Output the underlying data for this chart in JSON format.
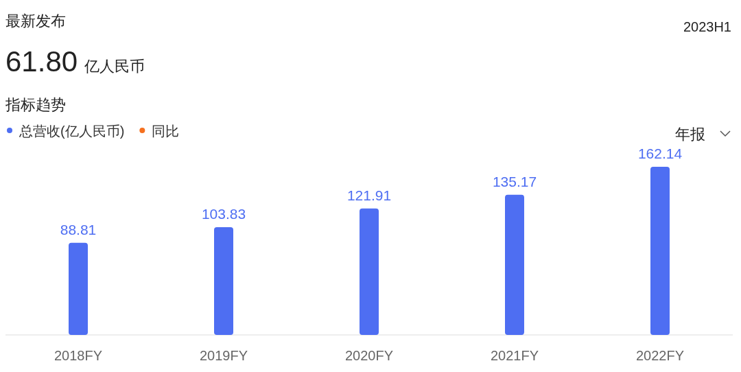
{
  "chart_data": {
    "type": "bar",
    "title": "最新发布",
    "subtitle": "61.80 亿人民币",
    "annotations": [
      "2023H1",
      "指标趋势",
      "年报"
    ],
    "categories": [
      "2018FY",
      "2019FY",
      "2020FY",
      "2021FY",
      "2022FY"
    ],
    "series": [
      {
        "name": "总营收(亿人民币)",
        "color": "#4e6ef2",
        "values": [
          88.81,
          103.83,
          121.91,
          135.17,
          162.14
        ]
      },
      {
        "name": "同比",
        "color": "#f5701f",
        "values": [
          null,
          null,
          null,
          null,
          null
        ]
      }
    ],
    "data_labels": true,
    "legend": "top left"
  }
}
